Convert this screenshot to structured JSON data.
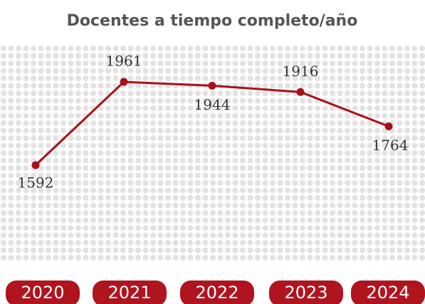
{
  "chart_data": {
    "type": "line",
    "title": "Docentes a tiempo completo/año",
    "categories": [
      "2020",
      "2021",
      "2022",
      "2023",
      "2024"
    ],
    "values": [
      1592,
      1961,
      1944,
      1916,
      1764
    ],
    "color": "#a8101c"
  }
}
